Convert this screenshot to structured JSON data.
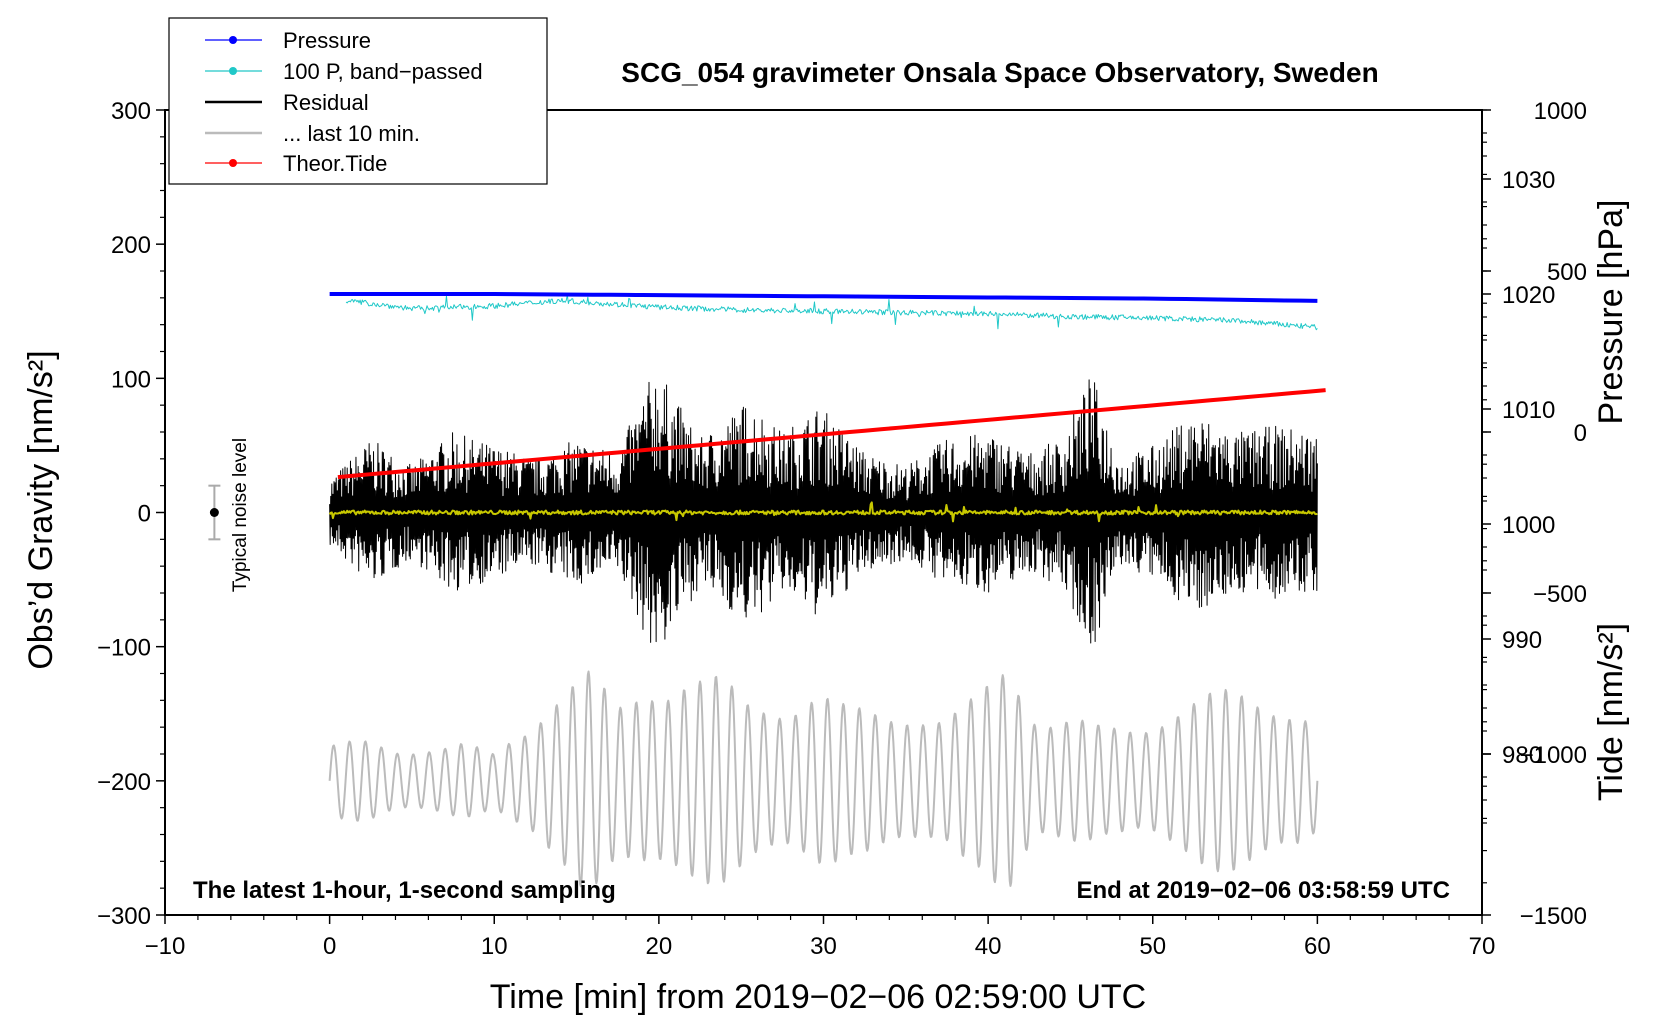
{
  "chart_data": {
    "type": "line",
    "title": "SCG_054 gravimeter Onsala Space Observatory, Sweden",
    "xlabel": "Time [min] from 2019−02−06 02:59:00 UTC",
    "ylabel_left": "Obs’d Gravity [nm/s²]",
    "ylabel_right_pressure": "Pressure [hPa]",
    "ylabel_right_tide": "Tide [nm/s²]",
    "xlim": [
      -10,
      70
    ],
    "ylim": [
      -300,
      300
    ],
    "pressure_lim": [
      966,
      1036
    ],
    "tide_lim": [
      -1500,
      1000
    ],
    "x_ticks": [
      -10,
      0,
      10,
      20,
      30,
      40,
      50,
      60,
      70
    ],
    "x_tick_labels": [
      "−10",
      "0",
      "10",
      "20",
      "30",
      "40",
      "50",
      "60",
      "70"
    ],
    "y_ticks": [
      -300,
      -200,
      -100,
      0,
      100,
      200,
      300
    ],
    "y_tick_labels": [
      "−300",
      "−200",
      "−100",
      "0",
      "100",
      "200",
      "300"
    ],
    "pressure_ticks": [
      980,
      990,
      1000,
      1010,
      1020,
      1030
    ],
    "pressure_tick_labels": [
      "980",
      "990",
      "1000",
      "1010",
      "1020",
      "1030"
    ],
    "tide_ticks": [
      -1500,
      -1000,
      -500,
      0,
      500,
      1000
    ],
    "tide_tick_labels": [
      "−1500",
      "−1000",
      "−500",
      "0",
      "500",
      "1000"
    ],
    "legend": [
      "Pressure",
      "100 P, band−passed",
      "Residual",
      "... last 10 min.",
      "Theor.Tide"
    ],
    "legend_position": "top-left",
    "note_left": "The latest 1-hour, 1-second sampling",
    "note_right": "End at 2019−02−06 03:58:59 UTC",
    "noise_label": "Typical noise level",
    "noise_level": 20,
    "series": [
      {
        "name": "Pressure",
        "axis": "pressure",
        "color": "#0000ff",
        "x": [
          0,
          10,
          20,
          30,
          40,
          50,
          60
        ],
        "values": [
          1020.0,
          1020.0,
          1019.9,
          1019.8,
          1019.7,
          1019.6,
          1019.4
        ]
      },
      {
        "name": "100 P, band−passed",
        "axis": "gravity",
        "color": "#20c8c8",
        "x": [
          1,
          5,
          10,
          14,
          20,
          25,
          30,
          35,
          40,
          45,
          50,
          55,
          60
        ],
        "values": [
          158,
          152,
          154,
          158,
          153,
          151,
          150,
          149,
          148,
          146,
          145,
          143,
          138
        ]
      },
      {
        "name": "Residual",
        "axis": "gravity",
        "color": "#000000",
        "envelope_x": [
          0,
          2.5,
          5,
          7.5,
          10,
          12.5,
          15,
          17.5,
          19.8,
          22.5,
          25.5,
          27.5,
          29.8,
          32.5,
          35,
          37.5,
          40,
          42.5,
          44.5,
          46.3,
          48,
          50,
          52.5,
          55,
          57.5,
          60
        ],
        "envelope_values": [
          25,
          55,
          35,
          60,
          50,
          40,
          55,
          45,
          110,
          55,
          85,
          60,
          80,
          45,
          35,
          55,
          60,
          45,
          55,
          105,
          40,
          50,
          75,
          60,
          65,
          60
        ]
      },
      {
        "name": "residual-smoothed",
        "axis": "gravity",
        "color": "#c8c800",
        "x": [
          0,
          60
        ],
        "values": [
          0,
          0
        ]
      },
      {
        "name": "... last 10 min.",
        "axis": "gravity",
        "color": "#bbbbbb",
        "envelope_x": [
          0,
          2,
          4,
          6,
          8,
          10,
          12,
          13.5,
          15.5,
          17.5,
          19.5,
          21.5,
          23.5,
          25.5,
          27.5,
          29.5,
          31.5,
          33.5,
          35.5,
          37.5,
          39.5,
          41.3,
          43,
          45,
          47,
          49,
          51,
          53,
          55,
          57,
          59,
          60
        ],
        "envelope_values": [
          30,
          30,
          25,
          30,
          30,
          20,
          45,
          75,
          90,
          55,
          80,
          90,
          80,
          60,
          65,
          75,
          55,
          55,
          60,
          50,
          65,
          100,
          55,
          50,
          40,
          45,
          60,
          65,
          70,
          70,
          60,
          40
        ]
      },
      {
        "name": "Theor.Tide",
        "axis": "tide",
        "color": "#ff0000",
        "x": [
          0.5,
          60.5
        ],
        "values": [
          -140,
          130
        ]
      }
    ]
  }
}
